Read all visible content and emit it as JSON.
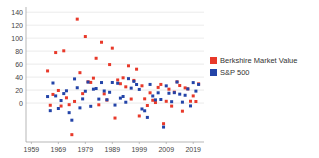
{
  "chart_data": {
    "type": "scatter",
    "x": [
      1965,
      1966,
      1967,
      1968,
      1969,
      1970,
      1971,
      1972,
      1973,
      1974,
      1975,
      1976,
      1977,
      1978,
      1979,
      1980,
      1981,
      1982,
      1983,
      1984,
      1985,
      1986,
      1987,
      1988,
      1989,
      1990,
      1991,
      1992,
      1993,
      1994,
      1995,
      1996,
      1997,
      1998,
      1999,
      2000,
      2001,
      2002,
      2003,
      2004,
      2005,
      2006,
      2007,
      2008,
      2009,
      2010,
      2011,
      2012,
      2013,
      2014,
      2015,
      2016,
      2017,
      2018,
      2019,
      2020,
      2021
    ],
    "series": [
      {
        "name": "Berkshire Market Value",
        "color": "#e8392a",
        "marker": "square",
        "values": [
          49.5,
          -3.4,
          13.3,
          77.8,
          19.4,
          -4.6,
          80.5,
          8.1,
          -2.5,
          -48.7,
          2.5,
          129.3,
          46.8,
          14.5,
          102.5,
          32.8,
          31.8,
          38.4,
          69.0,
          -2.7,
          93.7,
          14.2,
          4.6,
          59.3,
          84.6,
          -23.1,
          35.6,
          29.8,
          38.9,
          25.0,
          57.4,
          6.2,
          34.9,
          52.2,
          -19.9,
          26.6,
          6.5,
          -3.8,
          15.8,
          4.3,
          0.8,
          24.1,
          28.7,
          -31.8,
          2.7,
          21.4,
          -4.7,
          16.8,
          32.7,
          27.0,
          -12.5,
          23.4,
          21.9,
          2.8,
          11.0,
          2.4,
          29.6
        ]
      },
      {
        "name": "S&P 500",
        "color": "#2344a8",
        "marker": "square",
        "values": [
          10.0,
          -11.7,
          30.9,
          11.0,
          -8.4,
          3.9,
          14.6,
          18.9,
          -14.8,
          -26.4,
          37.2,
          23.6,
          -7.4,
          6.4,
          18.2,
          32.3,
          -5.0,
          21.4,
          22.4,
          6.1,
          31.6,
          18.6,
          5.1,
          16.6,
          31.7,
          -3.1,
          30.5,
          7.6,
          10.1,
          1.3,
          37.6,
          23.0,
          33.4,
          28.6,
          21.0,
          -9.1,
          -11.9,
          -22.1,
          28.7,
          10.9,
          4.9,
          15.8,
          5.5,
          -37.0,
          26.5,
          15.1,
          2.1,
          16.0,
          32.4,
          13.7,
          1.4,
          12.0,
          21.8,
          -4.4,
          31.5,
          18.4,
          28.7
        ]
      }
    ],
    "xlim": [
      1957,
      2023
    ],
    "ylim": [
      -60,
      148
    ],
    "xticks": [
      1959,
      1969,
      1979,
      1989,
      1999,
      2009,
      2019
    ],
    "yticks": [
      0,
      20,
      40,
      60,
      80,
      100,
      120,
      140
    ],
    "grid": true,
    "legend": "right"
  }
}
